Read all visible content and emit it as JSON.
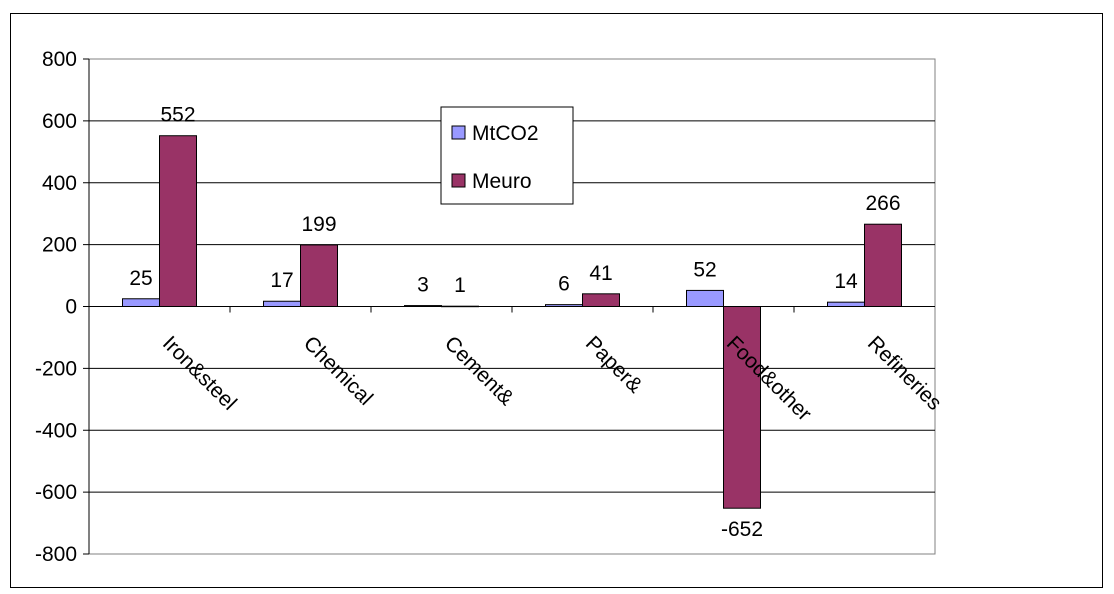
{
  "chart_data": {
    "type": "bar",
    "categories": [
      "Iron&steel",
      "Chemical",
      "Cement&",
      "Paper&",
      "Food&other",
      "Refineries"
    ],
    "series": [
      {
        "name": "MtCO2",
        "values": [
          25,
          17,
          3,
          6,
          52,
          14
        ],
        "color": "#9999ff"
      },
      {
        "name": "Meuro",
        "values": [
          552,
          199,
          1,
          41,
          -652,
          266
        ],
        "color": "#993366"
      }
    ],
    "ylim": [
      -800,
      800
    ],
    "yticks": [
      800,
      600,
      400,
      200,
      0,
      -200,
      -400,
      -600,
      -800
    ],
    "grid": true,
    "legend": "top-center",
    "title": "",
    "xlabel": "",
    "ylabel": ""
  }
}
